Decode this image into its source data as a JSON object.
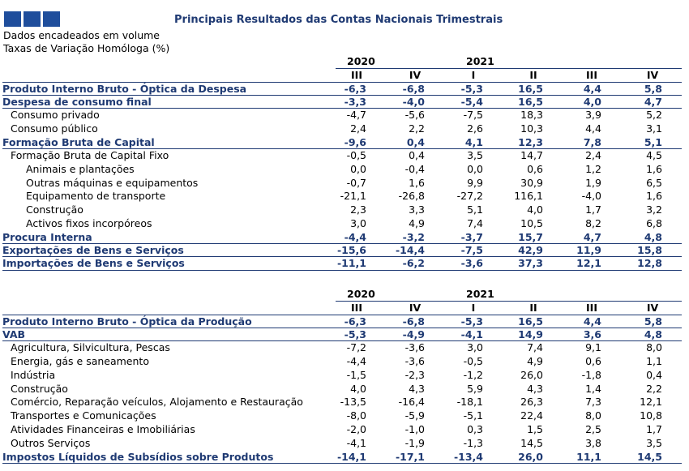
{
  "header": {
    "title": "Principais Resultados das Contas Nacionais Trimestrais",
    "subtitle1": "Dados encadeados em volume",
    "subtitle2": "Taxas de Variação Homóloga (%)"
  },
  "columns": {
    "year1": "2020",
    "year2": "2021",
    "quarters": [
      "III",
      "IV",
      "I",
      "II",
      "III",
      "IV"
    ]
  },
  "table1": [
    {
      "label": "Produto Interno Bruto - Óptica da Despesa",
      "level": 0,
      "bold": true,
      "values": [
        "-6,3",
        "-6,8",
        "-5,3",
        "16,5",
        "4,4",
        "5,8"
      ]
    },
    {
      "label": "Despesa de consumo final",
      "level": 0,
      "bold": true,
      "values": [
        "-3,3",
        "-4,0",
        "-5,4",
        "16,5",
        "4,0",
        "4,7"
      ]
    },
    {
      "label": "Consumo privado",
      "level": 1,
      "bold": false,
      "values": [
        "-4,7",
        "-5,6",
        "-7,5",
        "18,3",
        "3,9",
        "5,2"
      ]
    },
    {
      "label": "Consumo público",
      "level": 1,
      "bold": false,
      "values": [
        "2,4",
        "2,2",
        "2,6",
        "10,3",
        "4,4",
        "3,1"
      ]
    },
    {
      "label": "Formação Bruta de Capital",
      "level": 0,
      "bold": true,
      "values": [
        "-9,6",
        "0,4",
        "4,1",
        "12,3",
        "7,8",
        "5,1"
      ]
    },
    {
      "label": "Formação Bruta de Capital Fixo",
      "level": 1,
      "bold": false,
      "values": [
        "-0,5",
        "0,4",
        "3,5",
        "14,7",
        "2,4",
        "4,5"
      ]
    },
    {
      "label": "Animais e plantações",
      "level": 2,
      "bold": false,
      "values": [
        "0,0",
        "-0,4",
        "0,0",
        "0,6",
        "1,2",
        "1,6"
      ]
    },
    {
      "label": "Outras máquinas e equipamentos",
      "level": 2,
      "bold": false,
      "values": [
        "-0,7",
        "1,6",
        "9,9",
        "30,9",
        "1,9",
        "6,5"
      ]
    },
    {
      "label": "Equipamento de transporte",
      "level": 2,
      "bold": false,
      "values": [
        "-21,1",
        "-26,8",
        "-27,2",
        "116,1",
        "-4,0",
        "1,6"
      ]
    },
    {
      "label": "Construção",
      "level": 2,
      "bold": false,
      "values": [
        "2,3",
        "3,3",
        "5,1",
        "4,0",
        "1,7",
        "3,2"
      ]
    },
    {
      "label": "Activos fixos incorpóreos",
      "level": 2,
      "bold": false,
      "values": [
        "3,0",
        "4,9",
        "7,4",
        "10,5",
        "8,2",
        "6,8"
      ]
    },
    {
      "label": "Procura Interna",
      "level": 0,
      "bold": true,
      "values": [
        "-4,4",
        "-3,2",
        "-3,7",
        "15,7",
        "4,7",
        "4,8"
      ]
    },
    {
      "label": "Exportações de Bens e Serviços",
      "level": 0,
      "bold": true,
      "values": [
        "-15,6",
        "-14,4",
        "-7,5",
        "42,9",
        "11,9",
        "15,8"
      ]
    },
    {
      "label": "Importações de Bens e Serviços",
      "level": 0,
      "bold": true,
      "values": [
        "-11,1",
        "-6,2",
        "-3,6",
        "37,3",
        "12,1",
        "12,8"
      ]
    }
  ],
  "table2": [
    {
      "label": "Produto Interno Bruto - Óptica da Produção",
      "level": 0,
      "bold": true,
      "values": [
        "-6,3",
        "-6,8",
        "-5,3",
        "16,5",
        "4,4",
        "5,8"
      ]
    },
    {
      "label": "VAB",
      "level": 0,
      "bold": true,
      "values": [
        "-5,3",
        "-4,9",
        "-4,1",
        "14,9",
        "3,6",
        "4,8"
      ]
    },
    {
      "label": "Agricultura, Silvicultura, Pescas",
      "level": 1,
      "bold": false,
      "values": [
        "-7,2",
        "-3,6",
        "3,0",
        "7,4",
        "9,1",
        "8,0"
      ]
    },
    {
      "label": "Energia, gás e saneamento",
      "level": 1,
      "bold": false,
      "values": [
        "-4,4",
        "-3,6",
        "-0,5",
        "4,9",
        "0,6",
        "1,1"
      ]
    },
    {
      "label": "Indústria",
      "level": 1,
      "bold": false,
      "values": [
        "-1,5",
        "-2,3",
        "-1,2",
        "26,0",
        "-1,8",
        "0,4"
      ]
    },
    {
      "label": "Construção",
      "level": 1,
      "bold": false,
      "values": [
        "4,0",
        "4,3",
        "5,9",
        "4,3",
        "1,4",
        "2,2"
      ]
    },
    {
      "label": "Comércio, Reparação veículos, Alojamento e Restauração",
      "level": 1,
      "bold": false,
      "values": [
        "-13,5",
        "-16,4",
        "-18,1",
        "26,3",
        "7,3",
        "12,1"
      ]
    },
    {
      "label": "Transportes e Comunicações",
      "level": 1,
      "bold": false,
      "values": [
        "-8,0",
        "-5,9",
        "-5,1",
        "22,4",
        "8,0",
        "10,8"
      ]
    },
    {
      "label": "Atividades Financeiras e Imobiliárias",
      "level": 1,
      "bold": false,
      "values": [
        "-2,0",
        "-1,0",
        "0,3",
        "1,5",
        "2,5",
        "1,7"
      ]
    },
    {
      "label": "Outros Serviços",
      "level": 1,
      "bold": false,
      "values": [
        "-4,1",
        "-1,9",
        "-1,3",
        "14,5",
        "3,8",
        "3,5"
      ]
    },
    {
      "label": "Impostos Líquidos de Subsídios sobre Produtos",
      "level": 0,
      "bold": true,
      "values": [
        "-14,1",
        "-17,1",
        "-13,4",
        "26,0",
        "11,1",
        "14,5"
      ]
    }
  ]
}
